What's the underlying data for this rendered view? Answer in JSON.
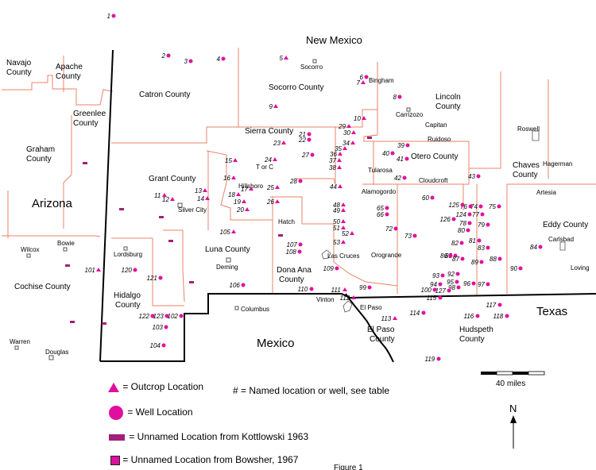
{
  "regions": {
    "new_mexico": "New Mexico",
    "arizona": "Arizona",
    "mexico": "Mexico",
    "texas": "Texas"
  },
  "counties": {
    "navajo": [
      "Navajo",
      "County"
    ],
    "apache": [
      "Apache",
      "County"
    ],
    "catron": "Catron County",
    "socorro": "Socorro County",
    "lincoln": [
      "Lincoln",
      "County"
    ],
    "greenlee": [
      "Greenlee",
      "County"
    ],
    "graham": [
      "Graham",
      "County"
    ],
    "sierra": "Sierra County",
    "otero": "Otero County",
    "chaves": [
      "Chaves",
      "County"
    ],
    "grant": "Grant County",
    "eddy": "Eddy County",
    "luna": "Luna County",
    "dona_ana": [
      "Dona Ana",
      "County"
    ],
    "cochise": "Cochise County",
    "hidalgo": [
      "Hidalgo",
      "County"
    ],
    "el_paso": [
      "El Paso",
      "County"
    ],
    "hudspeth": [
      "Hudspeth",
      "County"
    ]
  },
  "cities": [
    "Socorro",
    "Bingham",
    "Carrizozo",
    "Capitan",
    "Ruidoso",
    "Roswell",
    "Hagerman",
    "Tularosa",
    "Cloudcroft",
    "Alamogordo",
    "Artesia",
    "Carlsbad",
    "Loving",
    "T or C",
    "Hillsboro",
    "Hatch",
    "Las Cruces",
    "Orogrande",
    "Silver City",
    "Deming",
    "Columbus",
    "Lordsburg",
    "Bowie",
    "Wilcox",
    "Warren",
    "Douglas",
    "Vinton",
    "El Paso"
  ],
  "scale_label": "40 miles",
  "north_label": "N",
  "legend": {
    "outcrop": "= Outcrop Location",
    "named": "# = Named location or well, see table",
    "well": "= Well Location",
    "kottlowski": "= Unnamed Location from Kottlowski 1963",
    "bowsher": "= Unnamed Location from Bowsher, 1967"
  },
  "footer_fragment": "Figure 1",
  "colors": {
    "marker": "#e0109f",
    "boundary": "#e8836a",
    "state_line": "#000000"
  },
  "locations": [
    {
      "n": "1",
      "t": "well"
    },
    {
      "n": "2",
      "t": "well"
    },
    {
      "n": "3",
      "t": "well"
    },
    {
      "n": "4",
      "t": "well"
    },
    {
      "n": "5",
      "t": "outcrop"
    },
    {
      "n": "6",
      "t": "well"
    },
    {
      "n": "7",
      "t": "outcrop"
    },
    {
      "n": "8",
      "t": "well"
    },
    {
      "n": "9",
      "t": "outcrop"
    },
    {
      "n": "10",
      "t": "outcrop"
    },
    {
      "n": "21",
      "t": "well"
    },
    {
      "n": "22",
      "t": "well"
    },
    {
      "n": "23",
      "t": "outcrop"
    },
    {
      "n": "24",
      "t": "outcrop"
    },
    {
      "n": "25",
      "t": "outcrop"
    },
    {
      "n": "26",
      "t": "outcrop"
    },
    {
      "n": "27",
      "t": "well"
    },
    {
      "n": "28",
      "t": "well"
    },
    {
      "n": "29",
      "t": "outcrop"
    },
    {
      "n": "30",
      "t": "outcrop"
    },
    {
      "n": "34",
      "t": "outcrop"
    },
    {
      "n": "35",
      "t": "outcrop"
    },
    {
      "n": "36",
      "t": "outcrop"
    },
    {
      "n": "37",
      "t": "outcrop"
    },
    {
      "n": "38",
      "t": "outcrop"
    },
    {
      "n": "39",
      "t": "well"
    },
    {
      "n": "40",
      "t": "well"
    },
    {
      "n": "41",
      "t": "well"
    },
    {
      "n": "42",
      "t": "well"
    },
    {
      "n": "43",
      "t": "well"
    },
    {
      "n": "44",
      "t": "outcrop"
    },
    {
      "n": "48",
      "t": "outcrop"
    },
    {
      "n": "49",
      "t": "outcrop"
    },
    {
      "n": "50",
      "t": "outcrop"
    },
    {
      "n": "51",
      "t": "outcrop"
    },
    {
      "n": "52",
      "t": "outcrop"
    },
    {
      "n": "53",
      "t": "outcrop"
    },
    {
      "n": "60",
      "t": "well"
    },
    {
      "n": "65",
      "t": "well"
    },
    {
      "n": "66",
      "t": "well"
    },
    {
      "n": "72",
      "t": "well"
    },
    {
      "n": "73",
      "t": "well"
    },
    {
      "n": "74",
      "t": "well"
    },
    {
      "n": "75",
      "t": "well"
    },
    {
      "n": "76",
      "t": "well"
    },
    {
      "n": "77",
      "t": "well"
    },
    {
      "n": "78",
      "t": "well"
    },
    {
      "n": "79",
      "t": "well"
    },
    {
      "n": "80",
      "t": "well"
    },
    {
      "n": "81",
      "t": "well"
    },
    {
      "n": "82",
      "t": "well"
    },
    {
      "n": "83",
      "t": "well"
    },
    {
      "n": "84",
      "t": "well"
    },
    {
      "n": "85",
      "t": "well"
    },
    {
      "n": "86",
      "t": "well"
    },
    {
      "n": "87",
      "t": "well"
    },
    {
      "n": "88",
      "t": "well"
    },
    {
      "n": "89",
      "t": "well"
    },
    {
      "n": "90",
      "t": "well"
    },
    {
      "n": "92",
      "t": "well"
    },
    {
      "n": "93",
      "t": "well"
    },
    {
      "n": "94",
      "t": "well"
    },
    {
      "n": "95",
      "t": "well"
    },
    {
      "n": "96",
      "t": "well"
    },
    {
      "n": "97",
      "t": "well"
    },
    {
      "n": "98",
      "t": "well"
    },
    {
      "n": "99",
      "t": "well"
    },
    {
      "n": "100",
      "t": "well"
    },
    {
      "n": "101",
      "t": "outcrop"
    },
    {
      "n": "102",
      "t": "well"
    },
    {
      "n": "103",
      "t": "well"
    },
    {
      "n": "104",
      "t": "well"
    },
    {
      "n": "105",
      "t": "outcrop"
    },
    {
      "n": "106",
      "t": "well"
    },
    {
      "n": "107",
      "t": "well"
    },
    {
      "n": "108",
      "t": "well"
    },
    {
      "n": "109",
      "t": "well"
    },
    {
      "n": "110",
      "t": "well"
    },
    {
      "n": "111",
      "t": "outcrop"
    },
    {
      "n": "112",
      "t": "outcrop"
    },
    {
      "n": "113",
      "t": "outcrop"
    },
    {
      "n": "114",
      "t": "well"
    },
    {
      "n": "115",
      "t": "well"
    },
    {
      "n": "116",
      "t": "well"
    },
    {
      "n": "117",
      "t": "well"
    },
    {
      "n": "118",
      "t": "well"
    },
    {
      "n": "119",
      "t": "well"
    },
    {
      "n": "120",
      "t": "well"
    },
    {
      "n": "121",
      "t": "well"
    },
    {
      "n": "122",
      "t": "well"
    },
    {
      "n": "123",
      "t": "well"
    },
    {
      "n": "124",
      "t": "well"
    },
    {
      "n": "125",
      "t": "well"
    },
    {
      "n": "126",
      "t": "well"
    },
    {
      "n": "127",
      "t": "well"
    },
    {
      "n": "11",
      "t": "outcrop"
    },
    {
      "n": "12",
      "t": "outcrop"
    },
    {
      "n": "13",
      "t": "outcrop"
    },
    {
      "n": "14",
      "t": "outcrop"
    },
    {
      "n": "15",
      "t": "outcrop"
    },
    {
      "n": "16",
      "t": "outcrop"
    },
    {
      "n": "17",
      "t": "outcrop"
    },
    {
      "n": "18",
      "t": "outcrop"
    },
    {
      "n": "19",
      "t": "outcrop"
    },
    {
      "n": "20",
      "t": "outcrop"
    }
  ]
}
